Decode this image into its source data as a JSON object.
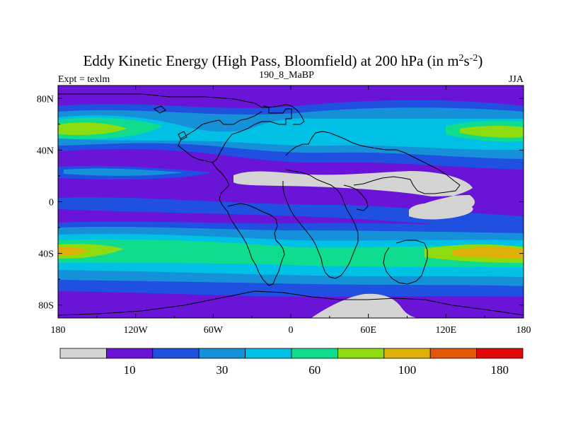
{
  "chart_data": {
    "type": "heatmap",
    "title_main": "Eddy Kinetic Energy (High Pass, Bloomfield) at 200 hPa (in m",
    "title_sup1": "2",
    "title_mid": "s",
    "title_sup2": "-2",
    "title_end": ")",
    "subtitle_left": "Expt = texlm",
    "subtitle_center": "190_8_MaBP",
    "subtitle_right": "JJA",
    "x_axis": {
      "range": [
        -180,
        180
      ],
      "ticks": [
        -180,
        -120,
        -60,
        0,
        60,
        120,
        180
      ],
      "tick_labels": [
        "180",
        "120W",
        "60W",
        "0",
        "60E",
        "120E",
        "180"
      ]
    },
    "y_axis": {
      "range": [
        -90,
        90
      ],
      "ticks": [
        80,
        40,
        0,
        -40,
        -80
      ],
      "tick_labels": [
        "80N",
        "40N",
        "0",
        "40S",
        "80S"
      ]
    },
    "colorbar": {
      "colors": [
        "#d4d4d4",
        "#6a14d8",
        "#1f50e0",
        "#1690d8",
        "#00c0e6",
        "#10dc8e",
        "#8edc10",
        "#deb008",
        "#e05808",
        "#e00808"
      ],
      "labels": [
        {
          "text": "10",
          "boundary": 2
        },
        {
          "text": "30",
          "boundary": 4
        },
        {
          "text": "60",
          "boundary": 6
        },
        {
          "text": "100",
          "boundary": 8
        },
        {
          "text": "180",
          "boundary": 10
        }
      ]
    },
    "field_bands": [
      {
        "name": "south-pole-below-10",
        "level": 0,
        "lat": [
          -90,
          -77
        ],
        "lon": [
          60,
          100
        ]
      },
      {
        "name": "sh-jet-outer",
        "level": 3,
        "lat": [
          -65,
          -25
        ],
        "lon": [
          -180,
          180
        ]
      },
      {
        "name": "sh-jet-core",
        "level": 5,
        "lat": [
          -52,
          -36
        ],
        "lon": [
          -180,
          180
        ]
      },
      {
        "name": "sh-jet-max-west",
        "level": 6,
        "lat": [
          -45,
          -38
        ],
        "lon": [
          -180,
          -140
        ]
      },
      {
        "name": "sh-jet-max-east",
        "level": 7,
        "lat": [
          -44,
          -38
        ],
        "lon": [
          120,
          180
        ]
      },
      {
        "name": "nh-storm-track",
        "level": 3,
        "lat": [
          35,
          70
        ],
        "lon": [
          -180,
          180
        ]
      },
      {
        "name": "nh-pacific-core",
        "level": 5,
        "lat": [
          48,
          62
        ],
        "lon": [
          -180,
          -120
        ]
      },
      {
        "name": "tropics-below-10",
        "level": 0,
        "lat": [
          10,
          22
        ],
        "lon": [
          -45,
          140
        ]
      }
    ]
  }
}
